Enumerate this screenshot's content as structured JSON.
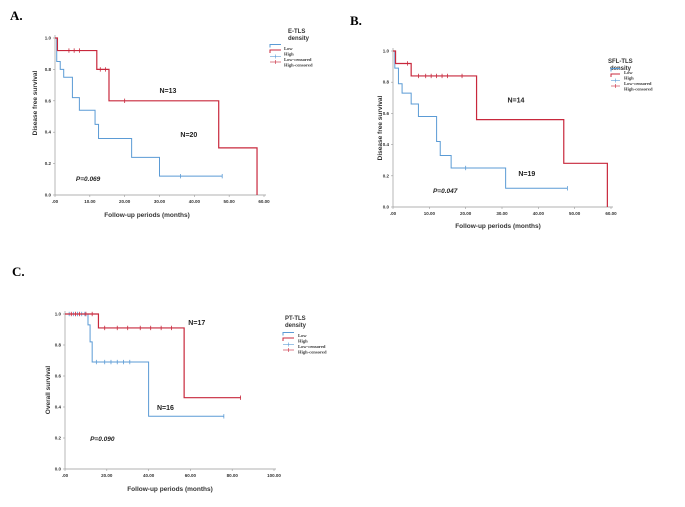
{
  "chart_data": [
    {
      "type": "line",
      "panel": "A.",
      "xlabel": "Follow-up periods (months)",
      "ylabel": "Disease free survival",
      "xlim": [
        0,
        60
      ],
      "ylim": [
        0,
        1.0
      ],
      "x_ticks": [
        0,
        10,
        20,
        30,
        40,
        50,
        60
      ],
      "x_tick_labels": [
        ".00",
        "10.00",
        "20.00",
        "30.00",
        "40.00",
        "50.00",
        "60.00"
      ],
      "y_ticks": [
        0,
        0.2,
        0.4,
        0.6,
        0.8,
        1.0
      ],
      "y_tick_labels": [
        "0.0",
        "0.2",
        "0.4",
        "0.6",
        "0.8",
        "1.0"
      ],
      "legend": {
        "title": [
          "E-TLS",
          "density"
        ],
        "items": [
          {
            "label": "Low",
            "color": "#5b9bd5",
            "kind": "line"
          },
          {
            "label": "High",
            "color": "#c8283c",
            "kind": "line"
          },
          {
            "label": "Low-censored",
            "color": "#5b9bd5",
            "kind": "censor"
          },
          {
            "label": "High-censored",
            "color": "#c8283c",
            "kind": "censor"
          }
        ]
      },
      "series": [
        {
          "name": "Low",
          "color": "#5b9bd5",
          "n_label": "N=20",
          "n_label_at": [
            36,
            0.37
          ],
          "steps": [
            [
              0,
              1.0
            ],
            [
              0.5,
              0.85
            ],
            [
              1.5,
              0.8
            ],
            [
              2.5,
              0.75
            ],
            [
              5,
              0.62
            ],
            [
              7,
              0.54
            ],
            [
              11.5,
              0.45
            ],
            [
              12.5,
              0.36
            ],
            [
              22,
              0.24
            ],
            [
              30,
              0.12
            ],
            [
              48,
              0.12
            ]
          ],
          "censor": [
            [
              36,
              0.12
            ],
            [
              48,
              0.12
            ]
          ]
        },
        {
          "name": "High",
          "color": "#c8283c",
          "n_label": "N=13",
          "n_label_at": [
            30,
            0.65
          ],
          "steps": [
            [
              0,
              1.0
            ],
            [
              0.7,
              0.92
            ],
            [
              12,
              0.8
            ],
            [
              15.5,
              0.6
            ],
            [
              47,
              0.3
            ],
            [
              58,
              0.0
            ]
          ],
          "censor": [
            [
              4,
              0.92
            ],
            [
              5.5,
              0.92
            ],
            [
              7,
              0.92
            ],
            [
              13,
              0.8
            ],
            [
              14.5,
              0.8
            ],
            [
              20,
              0.6
            ]
          ]
        }
      ],
      "p_value": "P=0.069",
      "p_value_at": [
        6,
        0.09
      ]
    },
    {
      "type": "line",
      "panel": "B.",
      "xlabel": "Follow-up periods (months)",
      "ylabel": "Disease free survival",
      "xlim": [
        0,
        60
      ],
      "ylim": [
        0,
        1.0
      ],
      "x_ticks": [
        0,
        10,
        20,
        30,
        40,
        50,
        60
      ],
      "x_tick_labels": [
        ".00",
        "10.00",
        "20.00",
        "30.00",
        "40.00",
        "50.00",
        "60.00"
      ],
      "y_ticks": [
        0,
        0.2,
        0.4,
        0.6,
        0.8,
        1.0
      ],
      "y_tick_labels": [
        "0.0",
        "0.2",
        "0.4",
        "0.6",
        "0.8",
        "1.0"
      ],
      "legend": {
        "title": [
          "SFL-TLS",
          "density"
        ],
        "items": [
          {
            "label": "Low",
            "color": "#5b9bd5",
            "kind": "line"
          },
          {
            "label": "High",
            "color": "#c8283c",
            "kind": "line"
          },
          {
            "label": "Low-censored",
            "color": "#5b9bd5",
            "kind": "censor"
          },
          {
            "label": "High-censored",
            "color": "#c8283c",
            "kind": "censor"
          }
        ]
      },
      "series": [
        {
          "name": "Low",
          "color": "#5b9bd5",
          "n_label": "N=19",
          "n_label_at": [
            34.5,
            0.2
          ],
          "steps": [
            [
              0,
              1.0
            ],
            [
              0.5,
              0.89
            ],
            [
              1.5,
              0.79
            ],
            [
              2.5,
              0.73
            ],
            [
              5,
              0.66
            ],
            [
              7,
              0.58
            ],
            [
              12,
              0.42
            ],
            [
              13,
              0.33
            ],
            [
              16,
              0.25
            ],
            [
              31,
              0.12
            ],
            [
              48,
              0.12
            ]
          ],
          "censor": [
            [
              20,
              0.25
            ],
            [
              48,
              0.12
            ]
          ]
        },
        {
          "name": "High",
          "color": "#c8283c",
          "n_label": "N=14",
          "n_label_at": [
            31.5,
            0.67
          ],
          "steps": [
            [
              0,
              1.0
            ],
            [
              0.7,
              0.92
            ],
            [
              5,
              0.84
            ],
            [
              23,
              0.56
            ],
            [
              47,
              0.28
            ],
            [
              59,
              0.0
            ]
          ],
          "censor": [
            [
              4,
              0.92
            ],
            [
              7,
              0.84
            ],
            [
              9,
              0.84
            ],
            [
              10.5,
              0.84
            ],
            [
              12,
              0.84
            ],
            [
              13.5,
              0.84
            ],
            [
              15,
              0.84
            ],
            [
              19,
              0.84
            ]
          ]
        }
      ],
      "p_value": "P=0.047",
      "p_value_at": [
        11,
        0.09
      ]
    },
    {
      "type": "line",
      "panel": "C.",
      "xlabel": "Follow-up periods (months)",
      "ylabel": "Overall survival",
      "xlim": [
        0,
        100
      ],
      "ylim": [
        0,
        1.0
      ],
      "x_ticks": [
        0,
        20,
        40,
        60,
        80,
        100
      ],
      "x_tick_labels": [
        ".00",
        "20.00",
        "40.00",
        "60.00",
        "80.00",
        "100.00"
      ],
      "y_ticks": [
        0,
        0.2,
        0.4,
        0.6,
        0.8,
        1.0
      ],
      "y_tick_labels": [
        "0.0",
        "0.2",
        "0.4",
        "0.6",
        "0.8",
        "1.0"
      ],
      "legend": {
        "title": [
          "PT-TLS",
          "density"
        ],
        "items": [
          {
            "label": "Low",
            "color": "#5b9bd5",
            "kind": "line"
          },
          {
            "label": "High",
            "color": "#c8283c",
            "kind": "line"
          },
          {
            "label": "Low-censored",
            "color": "#5b9bd5",
            "kind": "censor"
          },
          {
            "label": "High-censored",
            "color": "#c8283c",
            "kind": "censor"
          }
        ]
      },
      "series": [
        {
          "name": "Low",
          "color": "#5b9bd5",
          "n_label": "N=16",
          "n_label_at": [
            44,
            0.38
          ],
          "steps": [
            [
              0,
              1.0
            ],
            [
              11,
              0.93
            ],
            [
              12,
              0.82
            ],
            [
              13,
              0.69
            ],
            [
              40,
              0.34
            ],
            [
              76,
              0.34
            ]
          ],
          "censor": [
            [
              2,
              1.0
            ],
            [
              4,
              1.0
            ],
            [
              6,
              1.0
            ],
            [
              8,
              1.0
            ],
            [
              9.5,
              1.0
            ],
            [
              15,
              0.69
            ],
            [
              19,
              0.69
            ],
            [
              22,
              0.69
            ],
            [
              25,
              0.69
            ],
            [
              28,
              0.69
            ],
            [
              31,
              0.69
            ],
            [
              76,
              0.34
            ]
          ]
        },
        {
          "name": "High",
          "color": "#c8283c",
          "n_label": "N=17",
          "n_label_at": [
            59,
            0.93
          ],
          "steps": [
            [
              0,
              1.0
            ],
            [
              16,
              0.91
            ],
            [
              57,
              0.46
            ],
            [
              84,
              0.46
            ]
          ],
          "censor": [
            [
              3,
              1.0
            ],
            [
              5,
              1.0
            ],
            [
              7,
              1.0
            ],
            [
              10,
              1.0
            ],
            [
              13,
              1.0
            ],
            [
              19,
              0.91
            ],
            [
              25,
              0.91
            ],
            [
              30,
              0.91
            ],
            [
              36,
              0.91
            ],
            [
              41,
              0.91
            ],
            [
              46,
              0.91
            ],
            [
              51,
              0.91
            ],
            [
              84,
              0.46
            ]
          ]
        }
      ],
      "p_value": "P=0.090",
      "p_value_at": [
        12,
        0.18
      ]
    }
  ]
}
